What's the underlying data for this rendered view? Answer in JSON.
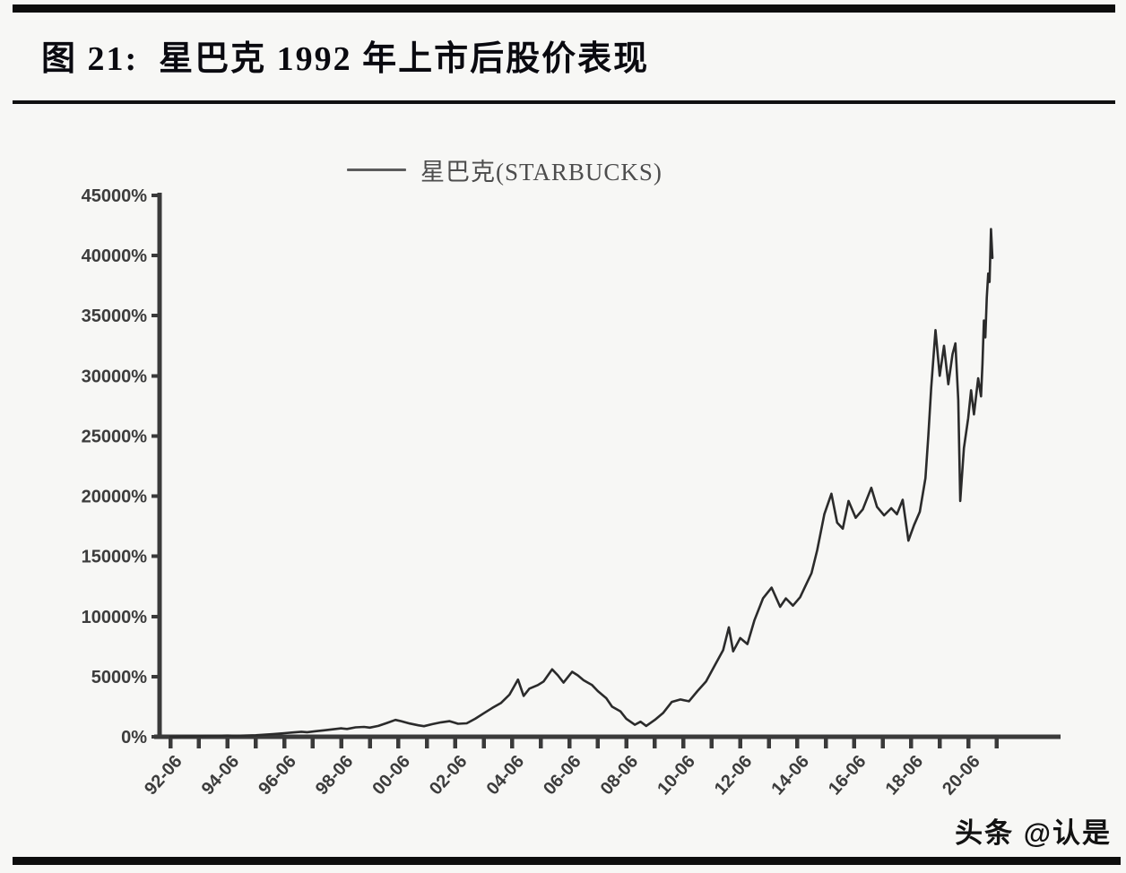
{
  "header": {
    "figure_title": "图 21:  星巴克 1992 年上市后股价表现"
  },
  "watermark": {
    "text": "头条 @认是"
  },
  "colors": {
    "background": "#f7f7f5",
    "divider_bar": "#0d0d0d",
    "title": "#0a0a10",
    "axis": "#3a3a3a",
    "tick_label": "#3c3c3c",
    "series_line": "#2b2b2b",
    "legend_text": "#4d4d4d"
  },
  "chart_data": {
    "type": "line",
    "title": "图 21: 星巴克 1992 年上市后股价表现",
    "xlabel": "",
    "ylabel": "",
    "grid": false,
    "legend_position": "top-center",
    "ylim": [
      0,
      45000
    ],
    "ytick_step": 5000,
    "ytick_labels": [
      "0%",
      "5000%",
      "10000%",
      "15000%",
      "20000%",
      "25000%",
      "30000%",
      "35000%",
      "40000%",
      "45000%"
    ],
    "xtick_labels": [
      "92-06",
      "94-06",
      "96-06",
      "98-06",
      "00-06",
      "02-06",
      "04-06",
      "06-06",
      "08-06",
      "10-06",
      "12-06",
      "14-06",
      "16-06",
      "18-06",
      "20-06"
    ],
    "x_minor_ticks_every_year": true,
    "x_start_year": 1992.5,
    "x_end_year": 2021.5,
    "series": [
      {
        "name": "星巴克(STARBUCKS)",
        "color": "#2b2b2b",
        "points_format": [
          "year_decimal",
          "cumulative_return_percent"
        ],
        "points": [
          [
            1992.5,
            0
          ],
          [
            1992.8,
            15
          ],
          [
            1993.1,
            40
          ],
          [
            1993.4,
            30
          ],
          [
            1993.8,
            65
          ],
          [
            1994.1,
            80
          ],
          [
            1994.5,
            100
          ],
          [
            1994.8,
            85
          ],
          [
            1995.1,
            95
          ],
          [
            1995.5,
            130
          ],
          [
            1995.8,
            170
          ],
          [
            1996.1,
            220
          ],
          [
            1996.5,
            300
          ],
          [
            1996.8,
            360
          ],
          [
            1997.1,
            420
          ],
          [
            1997.3,
            380
          ],
          [
            1997.6,
            460
          ],
          [
            1997.9,
            540
          ],
          [
            1998.2,
            620
          ],
          [
            1998.5,
            700
          ],
          [
            1998.7,
            650
          ],
          [
            1999.0,
            780
          ],
          [
            1999.3,
            820
          ],
          [
            1999.5,
            760
          ],
          [
            1999.8,
            900
          ],
          [
            2000.1,
            1150
          ],
          [
            2000.4,
            1400
          ],
          [
            2000.6,
            1300
          ],
          [
            2000.9,
            1100
          ],
          [
            2001.2,
            950
          ],
          [
            2001.4,
            880
          ],
          [
            2001.7,
            1050
          ],
          [
            2002.0,
            1200
          ],
          [
            2002.3,
            1300
          ],
          [
            2002.6,
            1080
          ],
          [
            2002.9,
            1120
          ],
          [
            2003.2,
            1500
          ],
          [
            2003.5,
            1950
          ],
          [
            2003.8,
            2400
          ],
          [
            2004.1,
            2800
          ],
          [
            2004.4,
            3500
          ],
          [
            2004.7,
            4750
          ],
          [
            2004.9,
            3400
          ],
          [
            2005.1,
            4000
          ],
          [
            2005.4,
            4300
          ],
          [
            2005.6,
            4600
          ],
          [
            2005.9,
            5600
          ],
          [
            2006.1,
            5100
          ],
          [
            2006.3,
            4500
          ],
          [
            2006.6,
            5400
          ],
          [
            2006.8,
            5100
          ],
          [
            2007.0,
            4700
          ],
          [
            2007.3,
            4300
          ],
          [
            2007.5,
            3800
          ],
          [
            2007.8,
            3200
          ],
          [
            2008.0,
            2500
          ],
          [
            2008.3,
            2100
          ],
          [
            2008.5,
            1500
          ],
          [
            2008.8,
            1000
          ],
          [
            2009.0,
            1250
          ],
          [
            2009.2,
            900
          ],
          [
            2009.5,
            1400
          ],
          [
            2009.8,
            2000
          ],
          [
            2010.1,
            2900
          ],
          [
            2010.4,
            3100
          ],
          [
            2010.7,
            2950
          ],
          [
            2011.0,
            3800
          ],
          [
            2011.3,
            4600
          ],
          [
            2011.6,
            5900
          ],
          [
            2011.9,
            7200
          ],
          [
            2012.1,
            9100
          ],
          [
            2012.25,
            7100
          ],
          [
            2012.5,
            8200
          ],
          [
            2012.75,
            7700
          ],
          [
            2013.0,
            9700
          ],
          [
            2013.3,
            11500
          ],
          [
            2013.6,
            12400
          ],
          [
            2013.9,
            10800
          ],
          [
            2014.1,
            11500
          ],
          [
            2014.35,
            10900
          ],
          [
            2014.6,
            11600
          ],
          [
            2014.8,
            12600
          ],
          [
            2015.0,
            13600
          ],
          [
            2015.2,
            15500
          ],
          [
            2015.45,
            18500
          ],
          [
            2015.7,
            20200
          ],
          [
            2015.9,
            17800
          ],
          [
            2016.1,
            17300
          ],
          [
            2016.3,
            19600
          ],
          [
            2016.55,
            18200
          ],
          [
            2016.8,
            18900
          ],
          [
            2017.1,
            20700
          ],
          [
            2017.3,
            19100
          ],
          [
            2017.55,
            18400
          ],
          [
            2017.8,
            19000
          ],
          [
            2018.0,
            18500
          ],
          [
            2018.2,
            19700
          ],
          [
            2018.4,
            16300
          ],
          [
            2018.6,
            17600
          ],
          [
            2018.8,
            18700
          ],
          [
            2019.0,
            21500
          ],
          [
            2019.1,
            25000
          ],
          [
            2019.2,
            29000
          ],
          [
            2019.35,
            33800
          ],
          [
            2019.5,
            30000
          ],
          [
            2019.65,
            32500
          ],
          [
            2019.8,
            29300
          ],
          [
            2019.95,
            31800
          ],
          [
            2020.05,
            32700
          ],
          [
            2020.15,
            28000
          ],
          [
            2020.22,
            19600
          ],
          [
            2020.35,
            24000
          ],
          [
            2020.5,
            26500
          ],
          [
            2020.6,
            28800
          ],
          [
            2020.7,
            26800
          ],
          [
            2020.85,
            29800
          ],
          [
            2020.95,
            28300
          ],
          [
            2021.0,
            31000
          ],
          [
            2021.05,
            34600
          ],
          [
            2021.1,
            33200
          ],
          [
            2021.15,
            36500
          ],
          [
            2021.2,
            38500
          ],
          [
            2021.25,
            37800
          ],
          [
            2021.3,
            42200
          ],
          [
            2021.35,
            39800
          ]
        ]
      }
    ]
  }
}
